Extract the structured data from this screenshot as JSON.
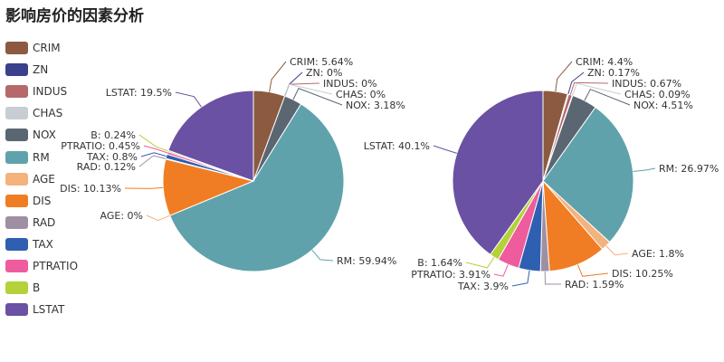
{
  "title": "影响房价的因素分析",
  "legend": [
    {
      "name": "CRIM",
      "color": "#8c5a40"
    },
    {
      "name": "ZN",
      "color": "#3b3f8c"
    },
    {
      "name": "INDUS",
      "color": "#b5696b"
    },
    {
      "name": "CHAS",
      "color": "#c7cdd3"
    },
    {
      "name": "NOX",
      "color": "#5a6772"
    },
    {
      "name": "RM",
      "color": "#5fa2ab"
    },
    {
      "name": "AGE",
      "color": "#f4b27c"
    },
    {
      "name": "DIS",
      "color": "#f07d24"
    },
    {
      "name": "RAD",
      "color": "#9e8fa3"
    },
    {
      "name": "TAX",
      "color": "#2f5fb0"
    },
    {
      "name": "PTRATIO",
      "color": "#ee5c9e"
    },
    {
      "name": "B",
      "color": "#b4d13a"
    },
    {
      "name": "LSTAT",
      "color": "#6a51a3"
    }
  ],
  "chart_data": [
    {
      "type": "pie",
      "categories": [
        "CRIM",
        "ZN",
        "INDUS",
        "CHAS",
        "NOX",
        "RM",
        "AGE",
        "DIS",
        "RAD",
        "TAX",
        "PTRATIO",
        "B",
        "LSTAT"
      ],
      "values": [
        5.64,
        0,
        0,
        0,
        3.18,
        59.94,
        0,
        10.13,
        0.12,
        0.8,
        0.45,
        0.24,
        19.5
      ],
      "labels": [
        "CRIM: 5.64%",
        "ZN: 0%",
        "INDUS: 0%",
        "CHAS: 0%",
        "NOX: 3.18%",
        "RM: 59.94%",
        "AGE: 0%",
        "DIS: 10.13%",
        "RAD: 0.12%",
        "TAX: 0.8%",
        "PTRATIO: 0.45%",
        "B: 0.24%",
        "LSTAT: 19.5%"
      ]
    },
    {
      "type": "pie",
      "categories": [
        "CRIM",
        "ZN",
        "INDUS",
        "CHAS",
        "NOX",
        "RM",
        "AGE",
        "DIS",
        "RAD",
        "TAX",
        "PTRATIO",
        "B",
        "LSTAT"
      ],
      "values": [
        4.4,
        0.17,
        0.67,
        0.09,
        4.51,
        26.97,
        1.8,
        10.25,
        1.59,
        3.9,
        3.91,
        1.64,
        40.1
      ],
      "labels": [
        "CRIM: 4.4%",
        "ZN: 0.17%",
        "INDUS: 0.67%",
        "CHAS: 0.09%",
        "NOX: 4.51%",
        "RM: 26.97%",
        "AGE: 1.8%",
        "DIS: 10.25%",
        "RAD: 1.59%",
        "TAX: 3.9%",
        "PTRATIO: 3.91%",
        "B: 1.64%",
        "LSTAT: 40.1%"
      ]
    }
  ]
}
